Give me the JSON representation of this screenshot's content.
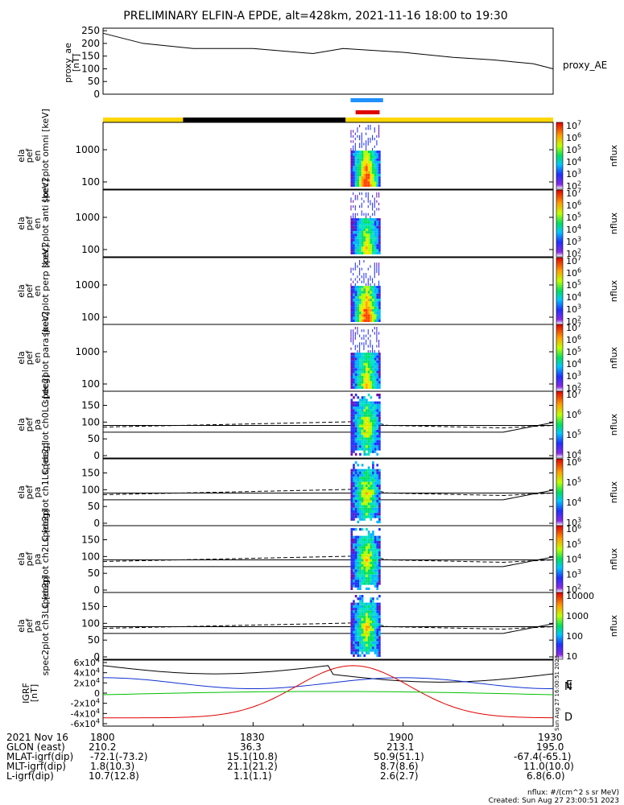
{
  "title": "PRELIMINARY ELFIN-A EPDE, alt=428km, 2021-11-16 18:00 to 19:30",
  "colors": {
    "blue": "#1e90ff",
    "red": "#e00000",
    "yellow": "#ffd700",
    "black": "#000000",
    "green": "#00c000"
  },
  "chart_data": [
    {
      "type": "line",
      "name": "proxy_ae",
      "ylabel": "proxy_ae [nT]",
      "legend": "proxy_AE",
      "yticks": [
        "250",
        "200",
        "150",
        "100",
        "50",
        "0"
      ],
      "ylim": [
        0,
        260
      ],
      "xlim": [
        0,
        90
      ],
      "x_minutes": [
        0,
        8,
        18,
        30,
        42,
        48,
        60,
        70,
        78,
        86,
        90
      ],
      "values": [
        240,
        200,
        180,
        180,
        160,
        180,
        165,
        145,
        135,
        120,
        100
      ]
    },
    {
      "type": "heatmap",
      "name": "ela_pef_en_spec2plot_omni",
      "ylabel": "ela pef en spec2plot omni [keV]",
      "yticks": [
        "1000",
        "100"
      ],
      "cbar_ticks": [
        "10^7",
        "10^6",
        "10^5",
        "10^4",
        "10^3",
        "10^2"
      ],
      "cbar_label": "nflux",
      "xrange_minutes": [
        49.5,
        55.5
      ]
    },
    {
      "type": "heatmap",
      "name": "ela_pef_en_spec2plot_anti",
      "ylabel": "ela pef en spec2plot anti [keV]",
      "yticks": [
        "1000",
        "100"
      ],
      "cbar_ticks": [
        "10^7",
        "10^6",
        "10^5",
        "10^4",
        "10^3",
        "10^2"
      ],
      "cbar_label": "nflux",
      "xrange_minutes": [
        49.5,
        55.5
      ]
    },
    {
      "type": "heatmap",
      "name": "ela_pef_en_spec2plot_perp",
      "ylabel": "ela pef en spec2plot perp [keV]",
      "yticks": [
        "1000",
        "100"
      ],
      "cbar_ticks": [
        "10^7",
        "10^6",
        "10^5",
        "10^4",
        "10^3",
        "10^2"
      ],
      "cbar_label": "nflux",
      "xrange_minutes": [
        49.5,
        55.5
      ]
    },
    {
      "type": "heatmap",
      "name": "ela_pef_en_spec2plot_para",
      "ylabel": "ela pef en spec2plot para [keV]",
      "yticks": [
        "1000",
        "100"
      ],
      "cbar_ticks": [
        "10^7",
        "10^6",
        "10^5",
        "10^4",
        "10^3",
        "10^2"
      ],
      "cbar_label": "nflux",
      "xrange_minutes": [
        49.5,
        55.5
      ]
    },
    {
      "type": "heatmap",
      "name": "ela_pef_pa_spec2plot_ch0LC",
      "ylabel": "ela pef pa spec2plot ch0LC [deg]",
      "yticks": [
        "150",
        "100",
        "50",
        "0"
      ],
      "cbar_ticks": [
        "10^7",
        "10^6",
        "10^5",
        "10^4"
      ],
      "cbar_label": "nflux",
      "xrange_minutes": [
        49.5,
        55.5
      ]
    },
    {
      "type": "heatmap",
      "name": "ela_pef_pa_spec2plot_ch1LC",
      "ylabel": "ela pef pa spec2plot ch1LC [deg]",
      "yticks": [
        "150",
        "100",
        "50",
        "0"
      ],
      "cbar_ticks": [
        "10^6",
        "10^5",
        "10^4",
        "10^3"
      ],
      "cbar_label": "nflux",
      "xrange_minutes": [
        49.5,
        55.5
      ]
    },
    {
      "type": "heatmap",
      "name": "ela_pef_pa_spec2plot_ch2LC",
      "ylabel": "ela pef pa spec2plot ch2LC [deg]",
      "yticks": [
        "150",
        "100",
        "50",
        "0"
      ],
      "cbar_ticks": [
        "10^6",
        "10^5",
        "10^4",
        "10^3",
        "10^2"
      ],
      "cbar_label": "nflux",
      "xrange_minutes": [
        49.5,
        55.5
      ]
    },
    {
      "type": "heatmap",
      "name": "ela_pef_pa_spec2plot_ch3LC",
      "ylabel": "ela pef pa spec2plot ch3LC [deg]",
      "yticks": [
        "150",
        "100",
        "50",
        "0"
      ],
      "cbar_ticks": [
        "10000",
        "1000",
        "100",
        "10"
      ],
      "cbar_label": "nflux",
      "xrange_minutes": [
        49.5,
        55.5
      ]
    },
    {
      "type": "line",
      "name": "IGRF",
      "ylabel": "IGRF [nT]",
      "yticks": [
        "6x10^4",
        "4x10^4",
        "2x10^4",
        "0",
        "-2x10^4",
        "-4x10^4",
        "-6x10^4"
      ],
      "legend": [
        "N",
        "E",
        "D"
      ],
      "ylim": [
        -60000,
        60000
      ]
    }
  ],
  "footer": {
    "labels": [
      "2021 Nov 16",
      "GLON (east)",
      "MLAT-igrf(dip)",
      "MLT-igrf(dip)",
      "L-igrf(dip)"
    ],
    "columns": [
      {
        "time": "1800",
        "glon": "210.2",
        "mlat": "-72.1(-73.2)",
        "mlt": "1.8(10.3)",
        "l": "10.7(12.8)"
      },
      {
        "time": "1830",
        "glon": "36.3",
        "mlat": "15.1(10.8)",
        "mlt": "21.1(21.2)",
        "l": "1.1(1.1)"
      },
      {
        "time": "1900",
        "glon": "213.1",
        "mlat": "50.9(51.1)",
        "mlt": "8.7(8.6)",
        "l": "2.6(2.7)"
      },
      {
        "time": "1930",
        "glon": "195.0",
        "mlat": "-67.4(-65.1)",
        "mlt": "11.0(10.0)",
        "l": "6.8(6.0)"
      }
    ],
    "units": "nflux: #/(cm^2 s sr MeV)",
    "created": "Created: Sun Aug 27 23:00:51 2023",
    "side_stamp": "Sun Aug 27 16:00:51 2023"
  }
}
